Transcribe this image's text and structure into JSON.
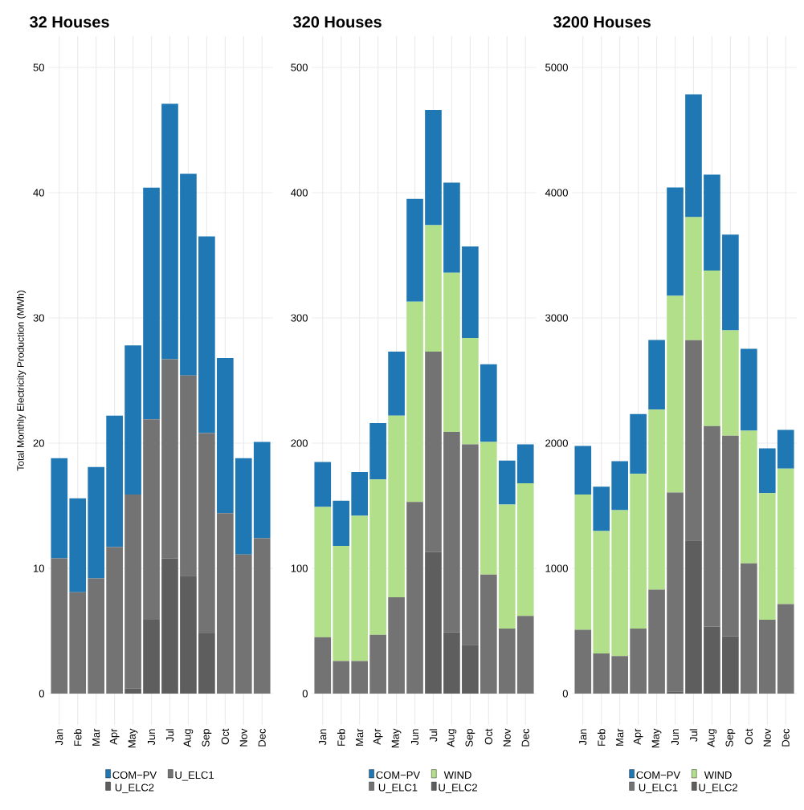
{
  "chart_data": [
    {
      "type": "bar",
      "stacked": true,
      "title": "32 Houses",
      "ylabel": "Total Monthly Electricity Production (MWh)",
      "categories": [
        "Jan",
        "Feb",
        "Mar",
        "Apr",
        "May",
        "Jun",
        "Jul",
        "Aug",
        "Sep",
        "Oct",
        "Nov",
        "Dec"
      ],
      "series": [
        {
          "name": "U_ELC2",
          "color": "#5e5e5e",
          "values": [
            0,
            0,
            0,
            0,
            0.4,
            5.9,
            10.8,
            9.4,
            4.8,
            0,
            0,
            0
          ]
        },
        {
          "name": "U_ELC1",
          "color": "#737373",
          "values": [
            10.8,
            8.1,
            9.2,
            11.7,
            15.5,
            16.0,
            15.9,
            16.0,
            16.0,
            14.4,
            11.1,
            12.4
          ]
        },
        {
          "name": "COM−PV",
          "color": "#1f78b4",
          "values": [
            8.0,
            7.5,
            8.9,
            10.5,
            11.9,
            18.5,
            20.4,
            16.1,
            15.7,
            12.4,
            7.7,
            7.7
          ]
        }
      ],
      "ylim": [
        -2.5,
        52.5
      ],
      "yticks": [
        0,
        10,
        20,
        30,
        40,
        50
      ],
      "grid": true,
      "legend": "bottom"
    },
    {
      "type": "bar",
      "stacked": true,
      "title": "320 Houses",
      "categories": [
        "Jan",
        "Feb",
        "Mar",
        "Apr",
        "May",
        "Jun",
        "Jul",
        "Aug",
        "Sep",
        "Oct",
        "Nov",
        "Dec"
      ],
      "series": [
        {
          "name": "U_ELC2",
          "color": "#5e5e5e",
          "values": [
            0,
            0,
            0,
            0,
            0,
            0,
            113,
            49,
            39,
            0,
            0,
            0
          ]
        },
        {
          "name": "U_ELC1",
          "color": "#737373",
          "values": [
            45,
            26,
            26,
            47,
            77,
            153,
            160,
            160,
            160,
            95,
            52,
            62
          ]
        },
        {
          "name": "WIND",
          "color": "#b2df8a",
          "values": [
            104,
            92,
            116,
            124,
            145,
            160,
            101,
            127,
            85,
            106,
            99,
            106
          ]
        },
        {
          "name": "COM−PV",
          "color": "#1f78b4",
          "values": [
            36,
            36,
            35,
            45,
            51,
            82,
            92,
            72,
            73,
            62,
            35,
            31
          ]
        }
      ],
      "ylim": [
        -25,
        525
      ],
      "yticks": [
        0,
        100,
        200,
        300,
        400,
        500
      ],
      "grid": true,
      "legend": "bottom"
    },
    {
      "type": "bar",
      "stacked": true,
      "title": "3200 Houses",
      "categories": [
        "Jan",
        "Feb",
        "Mar",
        "Apr",
        "May",
        "Jun",
        "Jul",
        "Aug",
        "Sep",
        "Oct",
        "Nov",
        "Dec"
      ],
      "series": [
        {
          "name": "U_ELC2",
          "color": "#5e5e5e",
          "values": [
            0,
            0,
            0,
            0,
            0,
            15,
            1222,
            536,
            459,
            0,
            0,
            0
          ]
        },
        {
          "name": "U_ELC1",
          "color": "#737373",
          "values": [
            510,
            320,
            300,
            520,
            830,
            1590,
            1600,
            1600,
            1600,
            1040,
            590,
            715
          ]
        },
        {
          "name": "WIND",
          "color": "#b2df8a",
          "values": [
            1079,
            978,
            1164,
            1234,
            1438,
            1572,
            983,
            1242,
            841,
            1059,
            1011,
            1081
          ]
        },
        {
          "name": "COM−PV",
          "color": "#1f78b4",
          "values": [
            389,
            354,
            392,
            479,
            555,
            864,
            980,
            766,
            765,
            654,
            358,
            309
          ]
        }
      ],
      "ylim": [
        -250,
        5250
      ],
      "yticks": [
        0,
        1000,
        2000,
        3000,
        4000,
        5000
      ],
      "grid": true,
      "legend": "bottom"
    }
  ]
}
